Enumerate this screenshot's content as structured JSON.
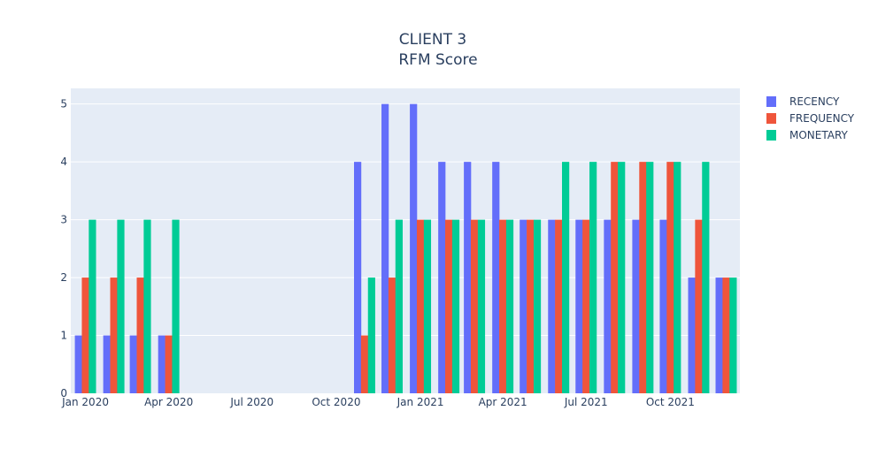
{
  "chart_data": {
    "type": "bar",
    "title": "CLIENT 3",
    "subtitle": "RFM Score",
    "xlabel": "",
    "ylabel": "",
    "ylim": [
      0,
      5.27
    ],
    "y_ticks": [
      0,
      1,
      2,
      3,
      4,
      5
    ],
    "x_range": [
      "2019-12-16",
      "2021-12-16"
    ],
    "x_ticks": [
      {
        "date": "2020-01-01",
        "label": "Jan 2020"
      },
      {
        "date": "2020-04-01",
        "label": "Apr 2020"
      },
      {
        "date": "2020-07-01",
        "label": "Jul 2020"
      },
      {
        "date": "2020-10-01",
        "label": "Oct 2020"
      },
      {
        "date": "2021-01-01",
        "label": "Jan 2021"
      },
      {
        "date": "2021-04-01",
        "label": "Apr 2021"
      },
      {
        "date": "2021-07-01",
        "label": "Jul 2021"
      },
      {
        "date": "2021-10-01",
        "label": "Oct 2021"
      }
    ],
    "grid": true,
    "legend_position": "top-right",
    "x": [
      "2020-01-01",
      "2020-02-01",
      "2020-03-01",
      "2020-04-01",
      "2020-11-01",
      "2020-12-01",
      "2021-01-01",
      "2021-02-01",
      "2021-03-01",
      "2021-04-01",
      "2021-05-01",
      "2021-06-01",
      "2021-07-01",
      "2021-08-01",
      "2021-09-01",
      "2021-10-01",
      "2021-11-01",
      "2021-12-01"
    ],
    "series": [
      {
        "name": "RECENCY",
        "color": "#636efa",
        "values": [
          1,
          1,
          1,
          1,
          4,
          5,
          5,
          4,
          4,
          4,
          3,
          3,
          3,
          3,
          3,
          3,
          2,
          2
        ]
      },
      {
        "name": "FREQUENCY",
        "color": "#ef553b",
        "values": [
          2,
          2,
          2,
          1,
          1,
          2,
          3,
          3,
          3,
          3,
          3,
          3,
          3,
          4,
          4,
          4,
          3,
          2
        ]
      },
      {
        "name": "MONETARY",
        "color": "#00cc96",
        "values": [
          3,
          3,
          3,
          3,
          2,
          3,
          3,
          3,
          3,
          3,
          3,
          4,
          4,
          4,
          4,
          4,
          4,
          2
        ]
      }
    ]
  }
}
